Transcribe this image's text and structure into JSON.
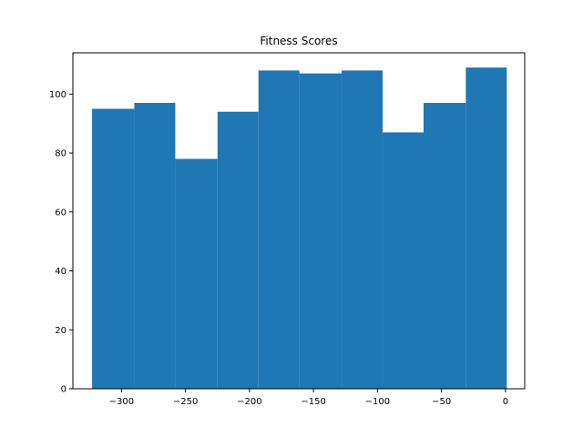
{
  "chart_data": {
    "type": "bar",
    "title": "Fitness Scores",
    "xlabel": "",
    "ylabel": "",
    "color": "#1f77b4",
    "bin_edges": [
      -323,
      -290,
      -258,
      -225,
      -193,
      -161,
      -128,
      -96,
      -64,
      -31,
      1
    ],
    "values": [
      95,
      97,
      78,
      94,
      108,
      107,
      108,
      87,
      97,
      109
    ],
    "xlim": [
      -338,
      15
    ],
    "ylim": [
      0,
      114
    ],
    "x_ticks": [
      -300,
      -250,
      -200,
      -150,
      -100,
      -50,
      0
    ],
    "x_tick_labels": [
      "−300",
      "−250",
      "−200",
      "−150",
      "−100",
      "−50",
      "0"
    ],
    "y_ticks": [
      0,
      20,
      40,
      60,
      80,
      100
    ],
    "y_tick_labels": [
      "0",
      "20",
      "40",
      "60",
      "80",
      "100"
    ],
    "grid": false,
    "legend": "none"
  }
}
